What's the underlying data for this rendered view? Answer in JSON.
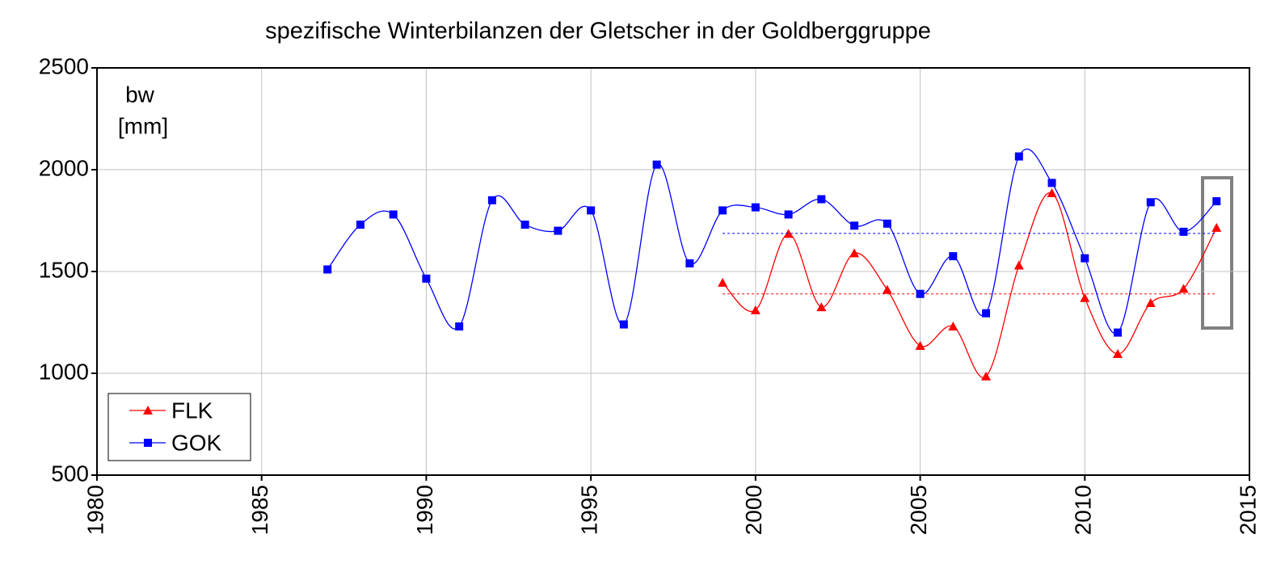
{
  "chart_data": {
    "type": "line",
    "title": "spezifische Winterbilanzen der Gletscher in der Goldberggruppe",
    "y_label": [
      "bw",
      "[mm]"
    ],
    "x": [
      1987,
      1988,
      1989,
      1990,
      1991,
      1992,
      1993,
      1994,
      1995,
      1996,
      1997,
      1998,
      1999,
      2000,
      2001,
      2002,
      2003,
      2004,
      2005,
      2006,
      2007,
      2008,
      2009,
      2010,
      2011,
      2012,
      2013,
      2014
    ],
    "series": [
      {
        "name": "FLK",
        "color": "#ff0000",
        "marker": "triangle",
        "values": [
          null,
          null,
          null,
          null,
          null,
          null,
          null,
          null,
          null,
          null,
          null,
          null,
          1445,
          1310,
          1685,
          1325,
          1590,
          1410,
          1135,
          1230,
          985,
          1530,
          1885,
          1370,
          1095,
          1345,
          1415,
          1715
        ],
        "mean": 1390,
        "mean_xlim": [
          1999,
          2014
        ]
      },
      {
        "name": "GOK",
        "color": "#0000ff",
        "marker": "square",
        "values": [
          1510,
          1730,
          1780,
          1465,
          1230,
          1850,
          1730,
          1700,
          1800,
          1240,
          2025,
          1540,
          1800,
          1815,
          1780,
          1855,
          1725,
          1735,
          1390,
          1575,
          1295,
          2065,
          1935,
          1565,
          1200,
          1840,
          1695,
          1845
        ],
        "mean": 1687,
        "mean_xlim": [
          1999,
          2014
        ]
      }
    ],
    "xlim": [
      1980,
      2015
    ],
    "xticks": [
      1980,
      1985,
      1990,
      1995,
      2000,
      2005,
      2010,
      2015
    ],
    "ylim": [
      500,
      2500
    ],
    "yticks": [
      500,
      1000,
      1500,
      2000,
      2500
    ],
    "grid": true,
    "smooth": true,
    "legend": "lower left"
  }
}
